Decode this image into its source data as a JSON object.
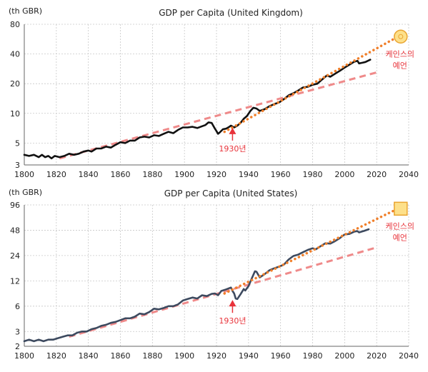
{
  "colors": {
    "gdp_line_uk": "#111111",
    "gdp_line_us": "#3d4a5f",
    "trend_dashed": "#ef8a8a",
    "keynes_dotted": "#f07f2a",
    "annotation_red": "#e8333a",
    "keynes_marker_fill": "#fde08a",
    "keynes_marker_stroke": "#e9a531"
  },
  "icons": {
    "uk_marker": "circle-marker-icon",
    "us_marker": "square-marker-icon",
    "arrow": "up-arrow-icon"
  },
  "chart_data": [
    {
      "type": "line",
      "title": "GDP per Capita (United Kingdom)",
      "unit_label": "(th GBR)",
      "yscale": "log",
      "xlim": [
        1800,
        2040
      ],
      "ylim": [
        3,
        80
      ],
      "x_ticks": [
        1800,
        1820,
        1840,
        1860,
        1880,
        1900,
        1920,
        1940,
        1960,
        1980,
        2000,
        2020,
        2040
      ],
      "y_ticks": [
        3,
        5,
        10,
        20,
        40,
        80
      ],
      "grid": true,
      "series": [
        {
          "style": "solid",
          "points": [
            [
              1800,
              3.8
            ],
            [
              1803,
              3.7
            ],
            [
              1806,
              3.8
            ],
            [
              1809,
              3.6
            ],
            [
              1811,
              3.8
            ],
            [
              1813,
              3.6
            ],
            [
              1815,
              3.7
            ],
            [
              1817,
              3.5
            ],
            [
              1819,
              3.7
            ],
            [
              1822,
              3.6
            ],
            [
              1825,
              3.7
            ],
            [
              1828,
              3.9
            ],
            [
              1831,
              3.8
            ],
            [
              1834,
              3.9
            ],
            [
              1837,
              4.1
            ],
            [
              1840,
              4.2
            ],
            [
              1842,
              4.1
            ],
            [
              1845,
              4.4
            ],
            [
              1848,
              4.4
            ],
            [
              1851,
              4.6
            ],
            [
              1854,
              4.5
            ],
            [
              1857,
              4.8
            ],
            [
              1860,
              5.1
            ],
            [
              1863,
              5.0
            ],
            [
              1866,
              5.3
            ],
            [
              1869,
              5.3
            ],
            [
              1872,
              5.7
            ],
            [
              1875,
              5.8
            ],
            [
              1878,
              5.7
            ],
            [
              1881,
              6.0
            ],
            [
              1884,
              5.9
            ],
            [
              1887,
              6.2
            ],
            [
              1890,
              6.5
            ],
            [
              1893,
              6.3
            ],
            [
              1896,
              6.8
            ],
            [
              1899,
              7.2
            ],
            [
              1902,
              7.2
            ],
            [
              1905,
              7.3
            ],
            [
              1908,
              7.1
            ],
            [
              1911,
              7.4
            ],
            [
              1913,
              7.6
            ],
            [
              1915,
              8.1
            ],
            [
              1917,
              8.0
            ],
            [
              1919,
              7.0
            ],
            [
              1920,
              6.6
            ],
            [
              1921,
              6.2
            ],
            [
              1922,
              6.4
            ],
            [
              1924,
              6.9
            ],
            [
              1926,
              7.0
            ],
            [
              1928,
              7.3
            ],
            [
              1929,
              7.5
            ],
            [
              1931,
              7.2
            ],
            [
              1933,
              7.5
            ],
            [
              1935,
              8.0
            ],
            [
              1937,
              8.8
            ],
            [
              1939,
              9.4
            ],
            [
              1941,
              10.5
            ],
            [
              1943,
              11.4
            ],
            [
              1945,
              11.2
            ],
            [
              1947,
              10.6
            ],
            [
              1950,
              11.0
            ],
            [
              1953,
              11.8
            ],
            [
              1956,
              12.4
            ],
            [
              1959,
              12.9
            ],
            [
              1962,
              13.9
            ],
            [
              1965,
              15.2
            ],
            [
              1968,
              16.0
            ],
            [
              1971,
              17.0
            ],
            [
              1974,
              18.3
            ],
            [
              1977,
              18.6
            ],
            [
              1980,
              19.5
            ],
            [
              1983,
              20.0
            ],
            [
              1986,
              22.1
            ],
            [
              1989,
              24.3
            ],
            [
              1991,
              23.5
            ],
            [
              1994,
              25.2
            ],
            [
              1997,
              27.0
            ],
            [
              2000,
              29.1
            ],
            [
              2003,
              31.2
            ],
            [
              2006,
              33.4
            ],
            [
              2008,
              34.1
            ],
            [
              2009,
              32.1
            ],
            [
              2011,
              32.6
            ],
            [
              2013,
              33.2
            ],
            [
              2016,
              35.0
            ]
          ]
        },
        {
          "style": "dashed",
          "points": [
            [
              1822,
              3.5
            ],
            [
              2020,
              26.0
            ]
          ]
        },
        {
          "style": "dotted",
          "points": [
            [
              1925,
              6.5
            ],
            [
              2035,
              62.0
            ]
          ]
        }
      ],
      "annotations": [
        {
          "text": "1930년",
          "x": 1930,
          "y": 6.8,
          "kind": "up-arrow"
        },
        {
          "text_lines": [
            "케인스의",
            "예언"
          ],
          "x": 2035,
          "y": 62.0,
          "kind": "circle-marker"
        }
      ]
    },
    {
      "type": "line",
      "title": "GDP per Capita (United States)",
      "unit_label": "(th GBR)",
      "yscale": "log",
      "xlim": [
        1800,
        2040
      ],
      "ylim": [
        2,
        96
      ],
      "x_ticks": [
        1800,
        1820,
        1840,
        1860,
        1880,
        1900,
        1920,
        1940,
        1960,
        1980,
        2000,
        2020,
        2040
      ],
      "y_ticks": [
        2,
        3,
        6,
        12,
        24,
        48,
        96
      ],
      "grid": true,
      "series": [
        {
          "style": "solid",
          "points": [
            [
              1800,
              2.3
            ],
            [
              1803,
              2.4
            ],
            [
              1806,
              2.3
            ],
            [
              1809,
              2.4
            ],
            [
              1812,
              2.3
            ],
            [
              1815,
              2.4
            ],
            [
              1818,
              2.4
            ],
            [
              1821,
              2.5
            ],
            [
              1824,
              2.6
            ],
            [
              1827,
              2.7
            ],
            [
              1830,
              2.7
            ],
            [
              1833,
              2.9
            ],
            [
              1836,
              3.0
            ],
            [
              1839,
              3.0
            ],
            [
              1842,
              3.2
            ],
            [
              1845,
              3.3
            ],
            [
              1848,
              3.5
            ],
            [
              1851,
              3.6
            ],
            [
              1854,
              3.8
            ],
            [
              1857,
              3.9
            ],
            [
              1860,
              4.1
            ],
            [
              1863,
              4.3
            ],
            [
              1866,
              4.3
            ],
            [
              1869,
              4.5
            ],
            [
              1872,
              4.9
            ],
            [
              1875,
              4.8
            ],
            [
              1878,
              5.1
            ],
            [
              1881,
              5.6
            ],
            [
              1884,
              5.5
            ],
            [
              1887,
              5.7
            ],
            [
              1890,
              6.0
            ],
            [
              1893,
              6.0
            ],
            [
              1896,
              6.3
            ],
            [
              1899,
              7.0
            ],
            [
              1902,
              7.3
            ],
            [
              1905,
              7.6
            ],
            [
              1908,
              7.4
            ],
            [
              1911,
              8.1
            ],
            [
              1914,
              7.9
            ],
            [
              1917,
              8.4
            ],
            [
              1919,
              8.5
            ],
            [
              1921,
              8.1
            ],
            [
              1923,
              9.1
            ],
            [
              1926,
              9.5
            ],
            [
              1929,
              10.0
            ],
            [
              1930,
              9.1
            ],
            [
              1931,
              8.5
            ],
            [
              1932,
              7.4
            ],
            [
              1933,
              7.3
            ],
            [
              1935,
              8.3
            ],
            [
              1937,
              9.6
            ],
            [
              1938,
              9.2
            ],
            [
              1940,
              10.4
            ],
            [
              1942,
              12.8
            ],
            [
              1944,
              15.6
            ],
            [
              1945,
              15.4
            ],
            [
              1947,
              13.2
            ],
            [
              1950,
              14.4
            ],
            [
              1953,
              16.0
            ],
            [
              1956,
              16.9
            ],
            [
              1959,
              17.7
            ],
            [
              1962,
              18.7
            ],
            [
              1965,
              21.5
            ],
            [
              1968,
              23.7
            ],
            [
              1971,
              24.6
            ],
            [
              1974,
              26.3
            ],
            [
              1977,
              28.0
            ],
            [
              1980,
              29.3
            ],
            [
              1982,
              28.5
            ],
            [
              1985,
              31.0
            ],
            [
              1988,
              33.6
            ],
            [
              1991,
              33.3
            ],
            [
              1994,
              35.6
            ],
            [
              1997,
              38.7
            ],
            [
              2000,
              42.7
            ],
            [
              2003,
              43.4
            ],
            [
              2006,
              46.2
            ],
            [
              2008,
              46.8
            ],
            [
              2009,
              45.2
            ],
            [
              2012,
              47.0
            ],
            [
              2015,
              49.3
            ]
          ]
        },
        {
          "style": "dashed",
          "points": [
            [
              1828,
              2.6
            ],
            [
              2020,
              30.0
            ]
          ]
        },
        {
          "style": "dotted",
          "points": [
            [
              1925,
              8.5
            ],
            [
              2035,
              90.0
            ]
          ]
        }
      ],
      "annotations": [
        {
          "text": "1930년",
          "x": 1930,
          "y": 6.7,
          "kind": "up-arrow"
        },
        {
          "text_lines": [
            "케인스의",
            "예언"
          ],
          "x": 2035,
          "y": 90.0,
          "kind": "square-marker"
        }
      ]
    }
  ]
}
